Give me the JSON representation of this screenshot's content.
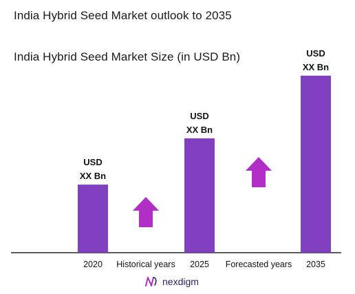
{
  "header": {
    "title": "India Hybrid Seed Market outlook to 2035",
    "subtitle": "India Hybrid Seed Market Size (in USD Bn)"
  },
  "chart_data": {
    "type": "bar",
    "categories": [
      "2020",
      "2025",
      "2035"
    ],
    "values": [
      1,
      1.68,
      2.6
    ],
    "value_labels": [
      "USD\nXX Bn",
      "USD\nXX Bn",
      "USD\nXX Bn"
    ],
    "annotations": [
      {
        "text": "Historical years",
        "icon": "up-arrow-icon"
      },
      {
        "text": "Forecasted years",
        "icon": "up-arrow-icon"
      }
    ],
    "ylim": [
      0,
      2.7
    ],
    "grid": false,
    "bar_color": "#8040bf",
    "arrow_color": "#b22fc7",
    "axis_color": "#222222"
  },
  "footer": {
    "brand": "nexdigm",
    "logo_color": "#b22fc7"
  }
}
